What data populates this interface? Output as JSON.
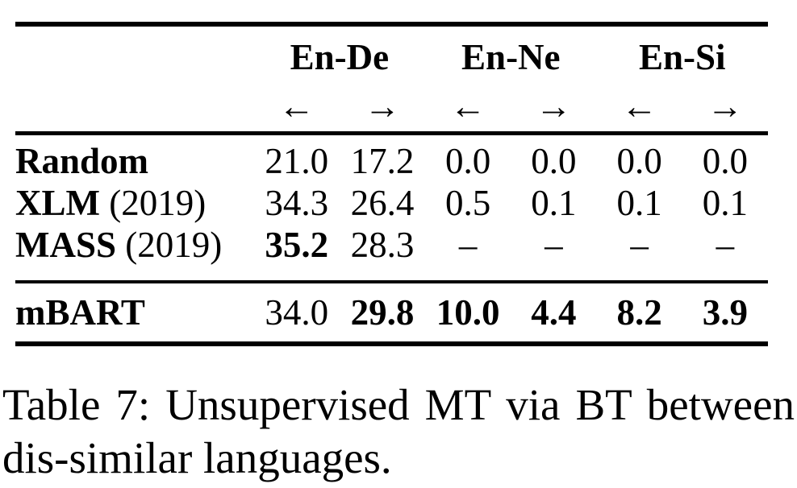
{
  "page": {
    "background_color": "#ffffff",
    "text_color": "#000000"
  },
  "table": {
    "column_groups": [
      {
        "label": "En-De"
      },
      {
        "label": "En-Ne"
      },
      {
        "label": "En-Si"
      }
    ],
    "arrow_row": [
      "←",
      "→",
      "←",
      "→",
      "←",
      "→"
    ],
    "rows": [
      {
        "group": "main",
        "label": "Random",
        "label_suffix": "",
        "cells": [
          {
            "v": "21.0"
          },
          {
            "v": "17.2"
          },
          {
            "v": "0.0"
          },
          {
            "v": "0.0"
          },
          {
            "v": "0.0"
          },
          {
            "v": "0.0"
          }
        ]
      },
      {
        "group": "main",
        "label": "XLM",
        "label_suffix": " (2019)",
        "cells": [
          {
            "v": "34.3"
          },
          {
            "v": "26.4"
          },
          {
            "v": "0.5"
          },
          {
            "v": "0.1"
          },
          {
            "v": "0.1"
          },
          {
            "v": "0.1"
          }
        ]
      },
      {
        "group": "main",
        "label": "MASS",
        "label_suffix": " (2019)",
        "cells": [
          {
            "v": "35.2",
            "bold": true
          },
          {
            "v": "28.3"
          },
          {
            "v": "–"
          },
          {
            "v": "–"
          },
          {
            "v": "–"
          },
          {
            "v": "–"
          }
        ]
      },
      {
        "group": "summary",
        "label": "mBART",
        "label_suffix": "",
        "cells": [
          {
            "v": "34.0"
          },
          {
            "v": "29.8",
            "bold": true
          },
          {
            "v": "10.0",
            "bold": true
          },
          {
            "v": "4.4",
            "bold": true
          },
          {
            "v": "8.2",
            "bold": true
          },
          {
            "v": "3.9",
            "bold": true
          }
        ]
      }
    ]
  },
  "caption": {
    "line1": "Table 7: Unsupervised MT via BT between",
    "line2": "dis-similar languages."
  },
  "chart_data": {
    "type": "table",
    "title": "Table 7: Unsupervised MT via BT between dis-similar languages.",
    "columns": [
      "Model",
      "En-De ←",
      "En-De →",
      "En-Ne ←",
      "En-Ne →",
      "En-Si ←",
      "En-Si →"
    ],
    "rows": [
      [
        "Random",
        21.0,
        17.2,
        0.0,
        0.0,
        0.0,
        0.0
      ],
      [
        "XLM (2019)",
        34.3,
        26.4,
        0.5,
        0.1,
        0.1,
        0.1
      ],
      [
        "MASS (2019)",
        35.2,
        28.3,
        null,
        null,
        null,
        null
      ],
      [
        "mBART",
        34.0,
        29.8,
        10.0,
        4.4,
        8.2,
        3.9
      ]
    ],
    "bold_values": [
      {
        "row": "MASS (2019)",
        "column": "En-De ←",
        "value": 35.2
      },
      {
        "row": "mBART",
        "column": "En-De →",
        "value": 29.8
      },
      {
        "row": "mBART",
        "column": "En-Ne ←",
        "value": 10.0
      },
      {
        "row": "mBART",
        "column": "En-Ne →",
        "value": 4.4
      },
      {
        "row": "mBART",
        "column": "En-Si ←",
        "value": 8.2
      },
      {
        "row": "mBART",
        "column": "En-Si →",
        "value": 3.9
      }
    ]
  }
}
